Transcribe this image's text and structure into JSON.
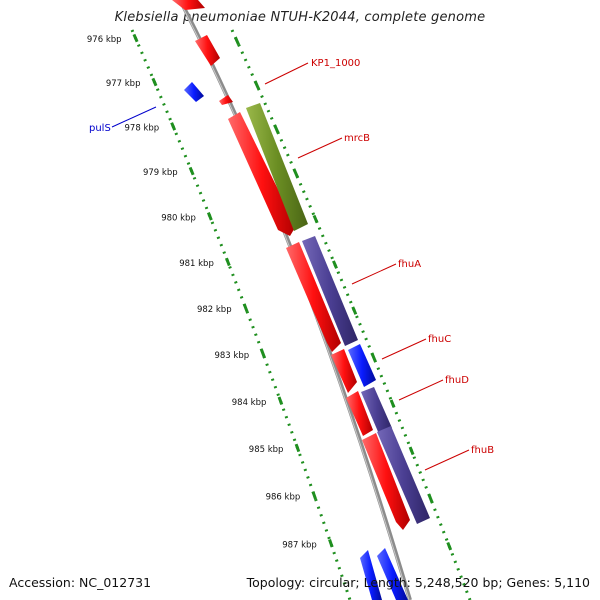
{
  "title": "Klebsiella pneumoniae NTUH-K2044, complete genome",
  "accession": "Accession: NC_012731",
  "summary": "Topology: circular; Length: 5,248,520 bp; Genes: 5,110",
  "tick_labels": [
    "976 kbp",
    "977 kbp",
    "978 kbp",
    "979 kbp",
    "980 kbp",
    "981 kbp",
    "982 kbp",
    "983 kbp",
    "984 kbp",
    "985 kbp",
    "986 kbp",
    "987 kbp"
  ],
  "gene_labels": [
    {
      "name": "KP1_1000",
      "color": "#cc0000"
    },
    {
      "name": "mrcB",
      "color": "#cc0000"
    },
    {
      "name": "fhuA",
      "color": "#cc0000"
    },
    {
      "name": "fhuC",
      "color": "#cc0000"
    },
    {
      "name": "fhuD",
      "color": "#cc0000"
    },
    {
      "name": "fhuB",
      "color": "#cc0000"
    },
    {
      "name": "pulS",
      "color": "#0000cc"
    }
  ],
  "colors": {
    "cds_forward": "#ff1a1a",
    "cds_reverse": "#0a1cff",
    "gene_green": "#6b8e23",
    "gene_purple": "#4b3f93",
    "backbone": "#8c8c8c",
    "ruler": "#1f8f1f"
  }
}
